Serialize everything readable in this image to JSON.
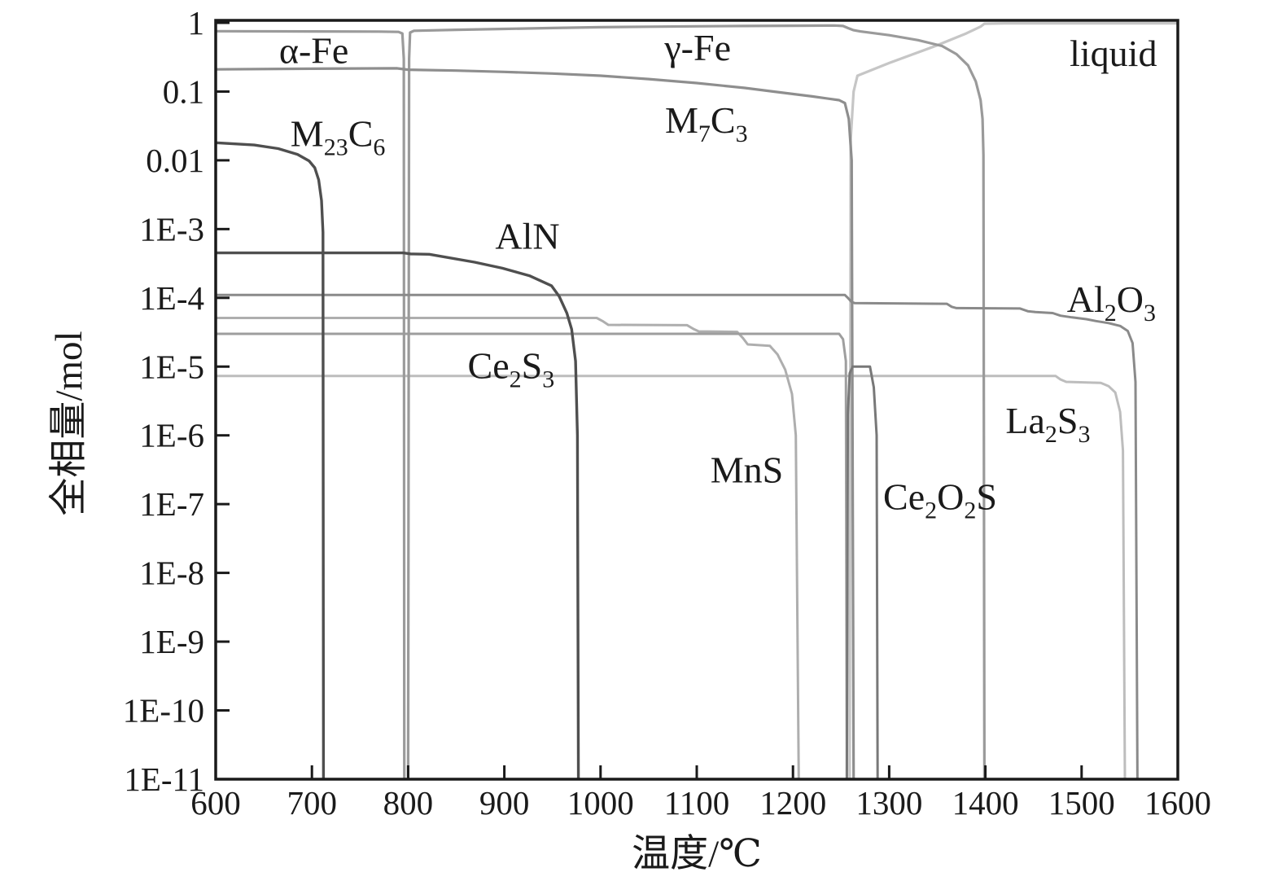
{
  "chart_data": {
    "type": "line",
    "title": "",
    "xlabel": "温度/℃",
    "ylabel": "全相量/mol",
    "x_axis": {
      "min": 600,
      "max": 1600,
      "tick_values": [
        600,
        700,
        800,
        900,
        1000,
        1100,
        1200,
        1300,
        1400,
        1500,
        1600
      ],
      "tick_labels": [
        "600",
        "700",
        "800",
        "900",
        "1000",
        "1100",
        "1200",
        "1300",
        "1400",
        "1500",
        "1600"
      ]
    },
    "y_axis": {
      "scale": "log",
      "min": 1e-11,
      "max": 1,
      "tick_values": [
        1,
        0.1,
        0.01,
        0.001,
        0.0001,
        1e-05,
        1e-06,
        1e-07,
        1e-08,
        1e-09,
        1e-10,
        1e-11
      ],
      "tick_labels": [
        "1",
        "0.1",
        "0.01",
        "1E-3",
        "1E-4",
        "1E-5",
        "1E-6",
        "1E-7",
        "1E-8",
        "1E-9",
        "1E-10",
        "1E-11"
      ]
    },
    "floor": 1e-11,
    "grid": false,
    "legend": "labels-on-plot",
    "series": [
      {
        "id": "liquid",
        "name": "liquid",
        "color": "#c6c6c6",
        "width": 3.2,
        "label": {
          "parts": [
            {
              "t": "liquid"
            }
          ],
          "T": 1533,
          "v": 0.365
        },
        "points": [
          [
            1259,
            1e-11
          ],
          [
            1260,
            0.02
          ],
          [
            1263,
            0.1
          ],
          [
            1267,
            0.17
          ],
          [
            1300,
            0.26
          ],
          [
            1348,
            0.46
          ],
          [
            1380,
            0.7
          ],
          [
            1395,
            0.88
          ],
          [
            1399,
            0.97
          ],
          [
            1420,
            0.985
          ],
          [
            1600,
            0.985
          ]
        ]
      },
      {
        "id": "la2s3",
        "name": "La2S3",
        "color": "#bdbdbd",
        "width": 3,
        "label": {
          "parts": [
            {
              "t": "La"
            },
            {
              "t": "2",
              "sub": true
            },
            {
              "t": "S"
            },
            {
              "t": "3",
              "sub": true
            }
          ],
          "T": 1465,
          "v": 1.66e-06
        },
        "points": [
          [
            600,
            7.3e-06
          ],
          [
            1473,
            7.3e-06
          ],
          [
            1478,
            6.5e-06
          ],
          [
            1484,
            6e-06
          ],
          [
            1520,
            5.8e-06
          ],
          [
            1528,
            5.2e-06
          ],
          [
            1535,
            4.2e-06
          ],
          [
            1540,
            2.2e-06
          ],
          [
            1543,
            6e-07
          ],
          [
            1545,
            1e-11
          ]
        ]
      },
      {
        "id": "mns",
        "name": "MnS",
        "color": "#aeaeae",
        "width": 3,
        "label": {
          "parts": [
            {
              "t": "MnS"
            }
          ],
          "T": 1152,
          "v": 3.2e-07
        },
        "points": [
          [
            600,
            5.1e-05
          ],
          [
            996,
            5.1e-05
          ],
          [
            1002,
            4.6e-05
          ],
          [
            1008,
            4.05e-05
          ],
          [
            1090,
            4e-05
          ],
          [
            1097,
            3.5e-05
          ],
          [
            1102,
            3.25e-05
          ],
          [
            1142,
            3.2e-05
          ],
          [
            1148,
            2.6e-05
          ],
          [
            1153,
            2.1e-05
          ],
          [
            1176,
            2e-05
          ],
          [
            1184,
            1.5e-05
          ],
          [
            1192,
            9e-06
          ],
          [
            1199,
            4e-06
          ],
          [
            1203,
            1e-06
          ],
          [
            1206,
            1e-11
          ]
        ]
      },
      {
        "id": "ce2s3",
        "name": "Ce2S3",
        "color": "#9e9e9e",
        "width": 3,
        "label": {
          "parts": [
            {
              "t": "Ce"
            },
            {
              "t": "2",
              "sub": true
            },
            {
              "t": "S"
            },
            {
              "t": "3",
              "sub": true
            }
          ],
          "T": 907,
          "v": 1.05e-05
        },
        "points": [
          [
            600,
            3e-05
          ],
          [
            1248,
            3e-05
          ],
          [
            1252,
            2.5e-05
          ],
          [
            1255,
            1.2e-05
          ],
          [
            1256,
            1e-11
          ]
        ]
      },
      {
        "id": "alpha-fe",
        "name": "α-Fe",
        "color": "#9b9b9b",
        "width": 3.2,
        "label": {
          "parts": [
            {
              "t": "α-Fe"
            }
          ],
          "T": 702,
          "v": 0.4
        },
        "points": [
          [
            600,
            0.755
          ],
          [
            700,
            0.75
          ],
          [
            770,
            0.744
          ],
          [
            790,
            0.737
          ],
          [
            794,
            0.7
          ],
          [
            795.5,
            0.3
          ],
          [
            796,
            1e-11
          ]
        ]
      },
      {
        "id": "gamma-fe",
        "name": "γ-Fe",
        "color": "#9a9a9a",
        "width": 3.2,
        "label": {
          "parts": [
            {
              "t": "γ-Fe"
            }
          ],
          "T": 1101,
          "v": 0.44
        },
        "points": [
          [
            800,
            1e-11
          ],
          [
            801,
            0.3
          ],
          [
            802,
            0.72
          ],
          [
            806,
            0.765
          ],
          [
            850,
            0.79
          ],
          [
            900,
            0.815
          ],
          [
            950,
            0.84
          ],
          [
            1000,
            0.862
          ],
          [
            1050,
            0.878
          ],
          [
            1100,
            0.89
          ],
          [
            1150,
            0.9
          ],
          [
            1200,
            0.906
          ],
          [
            1243,
            0.915
          ],
          [
            1252,
            0.9
          ],
          [
            1257,
            0.84
          ],
          [
            1263,
            0.78
          ],
          [
            1270,
            0.75
          ],
          [
            1300,
            0.66
          ],
          [
            1330,
            0.56
          ],
          [
            1355,
            0.46
          ],
          [
            1370,
            0.35
          ],
          [
            1382,
            0.24
          ],
          [
            1390,
            0.14
          ],
          [
            1395,
            0.075
          ],
          [
            1397,
            0.04
          ],
          [
            1398,
            0.012
          ],
          [
            1399,
            1e-11
          ]
        ]
      },
      {
        "id": "m7c3",
        "name": "M7C3",
        "color": "#8e8e8e",
        "width": 3.2,
        "label": {
          "parts": [
            {
              "t": "M"
            },
            {
              "t": "7",
              "sub": true
            },
            {
              "t": "C"
            },
            {
              "t": "3",
              "sub": true
            }
          ],
          "T": 1110,
          "v": 0.039
        },
        "points": [
          [
            600,
            0.21
          ],
          [
            700,
            0.215
          ],
          [
            788,
            0.218
          ],
          [
            800,
            0.208
          ],
          [
            850,
            0.202
          ],
          [
            900,
            0.193
          ],
          [
            950,
            0.183
          ],
          [
            1000,
            0.17
          ],
          [
            1050,
            0.152
          ],
          [
            1100,
            0.133
          ],
          [
            1150,
            0.113
          ],
          [
            1180,
            0.1
          ],
          [
            1220,
            0.085
          ],
          [
            1248,
            0.075
          ],
          [
            1254,
            0.068
          ],
          [
            1258,
            0.04
          ],
          [
            1261,
            0.01
          ],
          [
            1263,
            1e-11
          ]
        ]
      },
      {
        "id": "al2o3",
        "name": "Al2O3",
        "color": "#8a8a8a",
        "width": 3,
        "label": {
          "parts": [
            {
              "t": "Al"
            },
            {
              "t": "2",
              "sub": true
            },
            {
              "t": "O"
            },
            {
              "t": "3",
              "sub": true
            }
          ],
          "T": 1531,
          "v": 9.7e-05
        },
        "points": [
          [
            600,
            0.00011
          ],
          [
            1254,
            0.00011
          ],
          [
            1257,
            0.0001
          ],
          [
            1261,
            8.7e-05
          ],
          [
            1264,
            8.4e-05
          ],
          [
            1360,
            8.2e-05
          ],
          [
            1365,
            7.4e-05
          ],
          [
            1370,
            7.1e-05
          ],
          [
            1436,
            7e-05
          ],
          [
            1444,
            6.4e-05
          ],
          [
            1452,
            6.2e-05
          ],
          [
            1470,
            6e-05
          ],
          [
            1478,
            5.5e-05
          ],
          [
            1490,
            5.2e-05
          ],
          [
            1505,
            4.9e-05
          ],
          [
            1515,
            4.6e-05
          ],
          [
            1528,
            4.3e-05
          ],
          [
            1540,
            3.9e-05
          ],
          [
            1548,
            3.3e-05
          ],
          [
            1553,
            2.2e-05
          ],
          [
            1556,
            6e-06
          ],
          [
            1558,
            1e-11
          ]
        ]
      },
      {
        "id": "ce2o2s",
        "name": "Ce2O2S",
        "color": "#787878",
        "width": 3,
        "label": {
          "parts": [
            {
              "t": "Ce"
            },
            {
              "t": "2",
              "sub": true
            },
            {
              "t": "O"
            },
            {
              "t": "2",
              "sub": true
            },
            {
              "t": "S"
            }
          ],
          "T": 1353,
          "v": 1.3e-07
        },
        "points": [
          [
            1256,
            1e-11
          ],
          [
            1257,
            2e-06
          ],
          [
            1259,
            8e-06
          ],
          [
            1262,
            1e-05
          ],
          [
            1280,
            1e-05
          ],
          [
            1284,
            5e-06
          ],
          [
            1287,
            1e-06
          ],
          [
            1288,
            1e-11
          ]
        ]
      },
      {
        "id": "m23c6",
        "name": "M23C6",
        "color": "#4f4f4f",
        "width": 3.4,
        "label": {
          "parts": [
            {
              "t": "M"
            },
            {
              "t": "23",
              "sub": true
            },
            {
              "t": "C"
            },
            {
              "t": "6",
              "sub": true
            }
          ],
          "T": 727,
          "v": 0.025
        },
        "points": [
          [
            600,
            0.018
          ],
          [
            640,
            0.0167
          ],
          [
            665,
            0.0148
          ],
          [
            685,
            0.0122
          ],
          [
            697,
            0.0098
          ],
          [
            703,
            0.0078
          ],
          [
            707,
            0.0052
          ],
          [
            710,
            0.0026
          ],
          [
            711.5,
            0.0009
          ],
          [
            712,
            1e-11
          ]
        ]
      },
      {
        "id": "aln",
        "name": "AlN",
        "color": "#4f4f4f",
        "width": 3.4,
        "label": {
          "parts": [
            {
              "t": "AlN"
            }
          ],
          "T": 924,
          "v": 0.0008
        },
        "points": [
          [
            600,
            0.00045
          ],
          [
            795,
            0.00045
          ],
          [
            803,
            0.000435
          ],
          [
            822,
            0.00043
          ],
          [
            869,
            0.00033
          ],
          [
            898,
            0.00027
          ],
          [
            926,
            0.00021
          ],
          [
            949,
            0.00015
          ],
          [
            957,
            0.000105
          ],
          [
            965,
            6e-05
          ],
          [
            970,
            3.5e-05
          ],
          [
            974,
            1.2e-05
          ],
          [
            976,
            1e-06
          ],
          [
            977,
            1e-11
          ]
        ]
      }
    ],
    "style": {
      "frame_color": "#1a1a1a",
      "frame_width": 3.5,
      "tick_length": 16,
      "background": "#ffffff"
    }
  }
}
